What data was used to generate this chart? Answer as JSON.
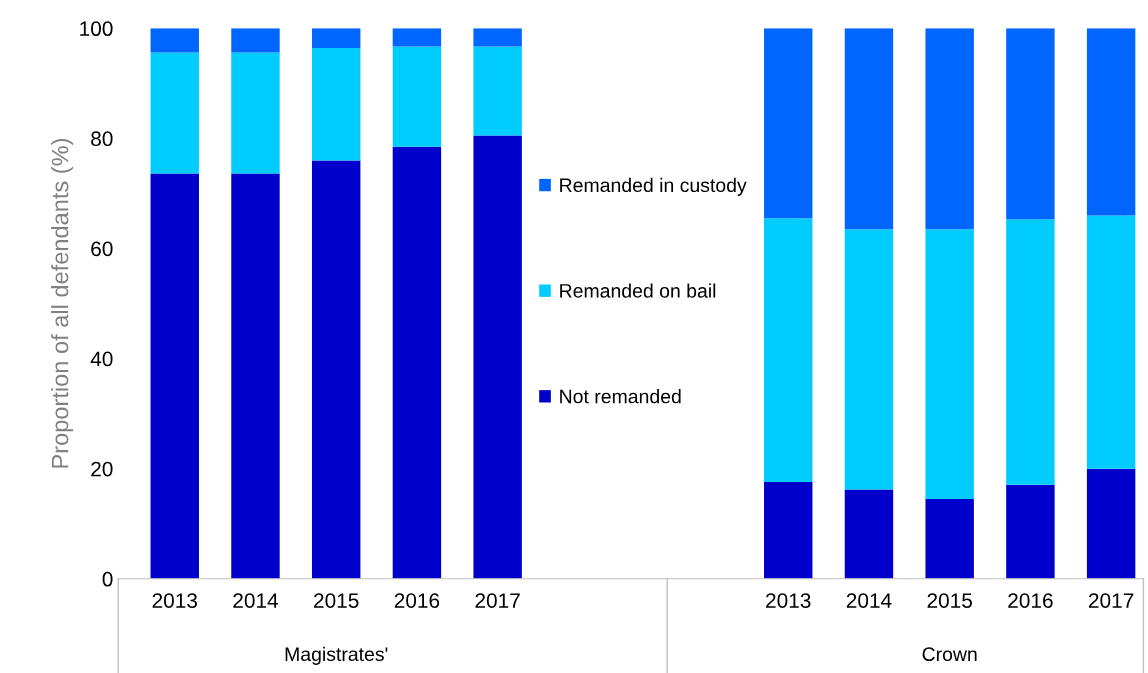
{
  "chart_data": {
    "type": "bar",
    "stacked": true,
    "ylabel": "Proportion of all defendants (%)",
    "categories": [
      "2013",
      "2014",
      "2015",
      "2016",
      "2017",
      "2013",
      "2014",
      "2015",
      "2016",
      "2017"
    ],
    "series": [
      {
        "name": "Not remanded",
        "color": "#0000cc",
        "values": [
          73.6,
          73.6,
          76,
          78.5,
          80.5,
          17.6,
          16.2,
          14.5,
          17.1,
          20
        ]
      },
      {
        "name": "Remanded on bail",
        "color": "#00ccff",
        "values": [
          22,
          22,
          20.4,
          18.2,
          16.2,
          47.9,
          47.3,
          49,
          48.2,
          46
        ]
      },
      {
        "name": "Remanded in custody",
        "color": "#0066ff",
        "values": [
          4.4,
          4.4,
          3.6,
          3.3,
          3.3,
          34.5,
          36.5,
          36.5,
          34.7,
          34
        ]
      }
    ],
    "ylim": [
      0,
      100
    ],
    "yticks": [
      0,
      20,
      40,
      60,
      80,
      100
    ],
    "grid": false,
    "legend": "center",
    "annotations": [
      "Magistrates'",
      "Crown"
    ]
  }
}
